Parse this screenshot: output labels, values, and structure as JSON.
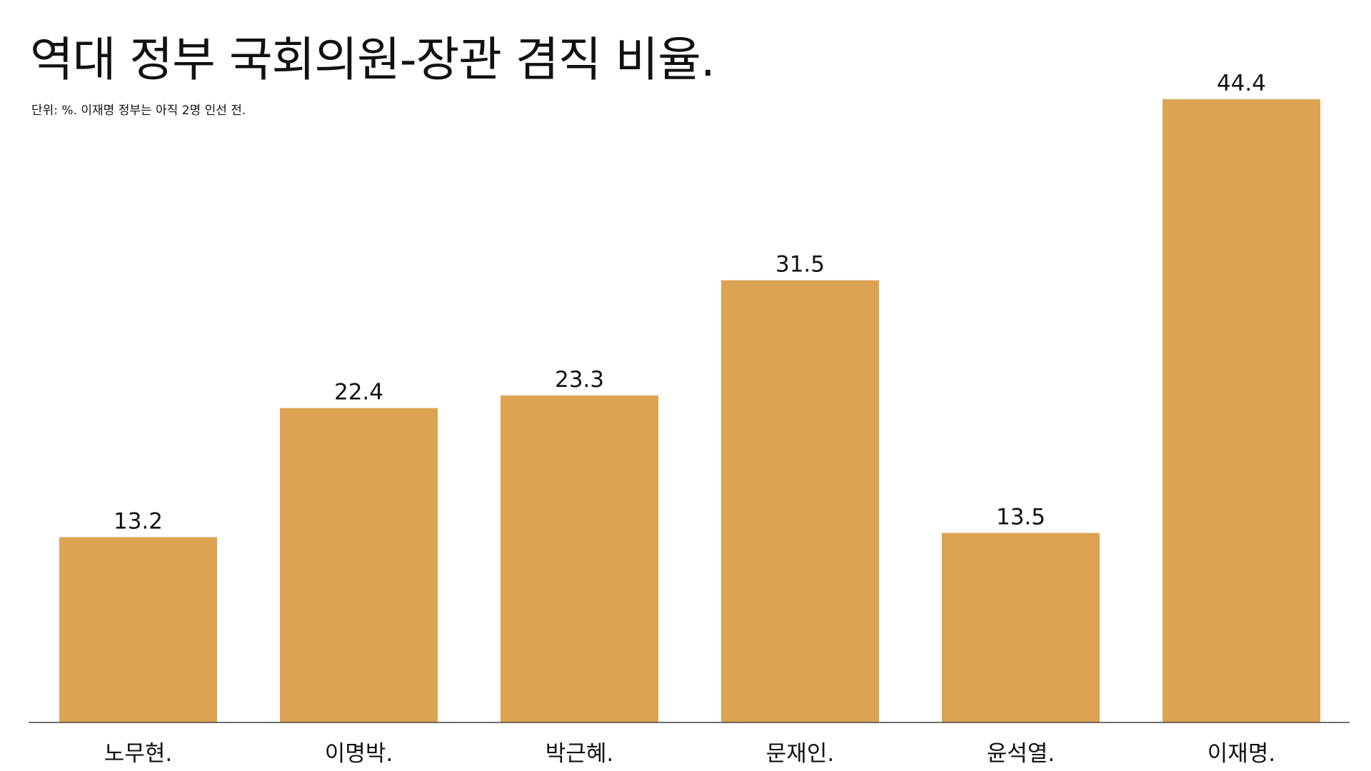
{
  "chart_data": {
    "type": "bar",
    "title": "역대 정부 국회의원-장관 겸직 비율.",
    "subtitle": "단위: %. 이재명 정부는 아직 2명 인선 전.",
    "categories": [
      "노무현.",
      "이명박.",
      "박근혜.",
      "문재인.",
      "윤석열.",
      "이재명."
    ],
    "values": [
      13.2,
      22.4,
      23.3,
      31.5,
      13.5,
      44.4
    ],
    "value_labels": [
      "13.2",
      "22.4",
      "23.3",
      "31.5",
      "13.5",
      "44.4"
    ],
    "xlabel": "",
    "ylabel": "",
    "ylim": [
      0,
      44.4
    ],
    "grid": false,
    "colors": {
      "bar": "#DCA352",
      "baseline": "#444444",
      "text": "#111111"
    }
  }
}
